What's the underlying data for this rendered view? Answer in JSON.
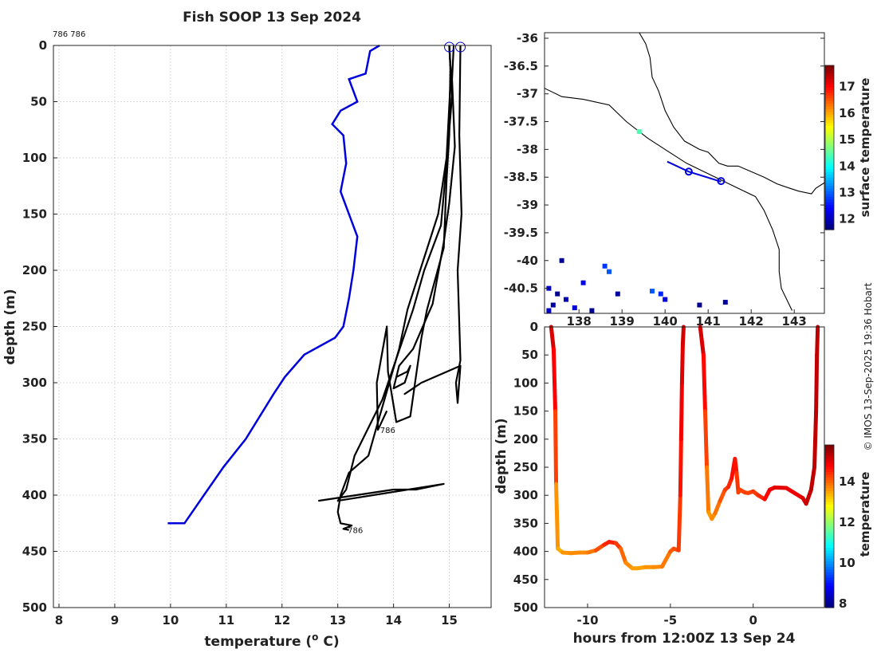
{
  "title": "Fish SOOP 13 Sep 2024",
  "cast_label_top": "786 786",
  "copyright": "© IMOS 13-Sep-2025 19:36 Hobart",
  "chart_data": [
    {
      "type": "line",
      "name": "profiles",
      "xlabel": "temperature (o C)",
      "xlabel_text": "temperature (",
      "xlabel_sup": "o",
      "xlabel_tail": " C)",
      "ylabel": "depth (m)",
      "xlim": [
        7.9,
        15.75
      ],
      "ylim": [
        0,
        500
      ],
      "xticks": [
        8,
        9,
        10,
        11,
        12,
        13,
        14,
        15
      ],
      "yticks": [
        0,
        50,
        100,
        150,
        200,
        250,
        300,
        350,
        400,
        450,
        500
      ],
      "grid": true,
      "climatology": {
        "color": "#0000dd",
        "x": [
          13.75,
          13.58,
          13.5,
          13.2,
          13.35,
          13.05,
          12.9,
          13.1,
          13.15,
          13.05,
          13.2,
          13.35,
          13.28,
          13.2,
          13.1,
          12.95,
          12.4,
          12.05,
          11.85,
          11.35,
          10.95,
          10.6,
          10.25,
          9.95
        ],
        "y": [
          0,
          5,
          25,
          30,
          50,
          58,
          70,
          80,
          105,
          130,
          150,
          170,
          200,
          225,
          250,
          260,
          275,
          295,
          310,
          350,
          375,
          400,
          425,
          425
        ]
      },
      "casts": [
        {
          "id": "786",
          "label_at": [
            13.73,
            342
          ],
          "color": "#000",
          "x": [
            15.0,
            15.02,
            15.0,
            14.95,
            14.9,
            14.6,
            14.5,
            14.3,
            14.05,
            13.9,
            13.88,
            13.7,
            13.72,
            13.88
          ],
          "y": [
            0,
            20,
            80,
            120,
            180,
            235,
            260,
            330,
            335,
            290,
            250,
            300,
            342,
            325
          ]
        },
        {
          "id": "786b",
          "label_at": null,
          "color": "#000",
          "x": [
            15.08,
            15.05,
            15.1,
            15.0,
            14.9,
            14.7,
            14.35,
            14.1,
            14.0,
            14.2,
            14.3,
            14.25,
            14.05
          ],
          "y": [
            0,
            30,
            90,
            140,
            175,
            230,
            270,
            285,
            305,
            300,
            285,
            290,
            295
          ]
        },
        {
          "id": "786",
          "label_at": [
            13.15,
            431
          ],
          "color": "#000",
          "x": [
            15.0,
            15.03,
            14.95,
            14.8,
            14.25,
            14.1,
            13.75,
            13.55,
            13.2,
            13.05,
            13.0,
            13.05,
            13.25,
            13.1,
            13.2
          ],
          "y": [
            0,
            25,
            100,
            150,
            235,
            270,
            330,
            365,
            380,
            400,
            415,
            425,
            427,
            430,
            431
          ]
        },
        {
          "id": "786c",
          "label_at": null,
          "color": "#000",
          "x": [
            15.0,
            15.05,
            14.95,
            14.85,
            14.55,
            14.35,
            13.8,
            13.3,
            13.15,
            13.0,
            14.9,
            14.4,
            14.0,
            12.65
          ],
          "y": [
            0,
            45,
            105,
            160,
            200,
            235,
            315,
            365,
            395,
            405,
            390,
            395,
            395,
            405
          ]
        },
        {
          "id": "786d",
          "label_at": null,
          "color": "#000",
          "x": [
            15.2,
            15.18,
            15.22,
            15.15,
            15.2,
            15.12,
            15.15,
            15.2,
            14.5,
            14.2,
            14.35
          ],
          "y": [
            0,
            80,
            150,
            200,
            280,
            300,
            318,
            285,
            300,
            310,
            305
          ]
        }
      ],
      "cast_markers_x": [
        15.0,
        15.2
      ]
    },
    {
      "type": "scatter",
      "name": "map",
      "colorbar_label": "surface temperature",
      "xlim": [
        137.2,
        143.7
      ],
      "ylim": [
        -40.95,
        -35.9
      ],
      "xticks": [
        138,
        139,
        140,
        141,
        142,
        143
      ],
      "yticks": [
        -36,
        -36.5,
        -37,
        -37.5,
        -38,
        -38.5,
        -39,
        -39.5,
        -40,
        -40.5
      ],
      "ytick_labels": [
        "-36",
        "-36.5",
        "-37",
        "-37.5",
        "-38",
        "-38.5",
        "-39",
        "-39.5",
        "-40",
        "-40.5"
      ],
      "xtick_labels": [
        "138",
        "139",
        "140",
        "141",
        "142",
        "143"
      ],
      "colorbar_ticks": [
        12,
        13,
        14,
        15,
        16,
        17
      ],
      "colorbar_range": [
        11.6,
        17.8
      ],
      "track": {
        "color": "#0000dd",
        "lon": [
          140.05,
          140.55,
          141.3
        ],
        "lat": [
          -38.22,
          -38.4,
          -38.58
        ]
      },
      "stations": [
        {
          "lon": 140.55,
          "lat": -38.4
        },
        {
          "lon": 141.3,
          "lat": -38.57
        }
      ],
      "coast_outer": [
        [
          137.2,
          -36.9
        ],
        [
          137.6,
          -37.05
        ],
        [
          138.1,
          -37.1
        ],
        [
          138.7,
          -37.2
        ],
        [
          139.1,
          -37.5
        ],
        [
          139.6,
          -37.8
        ],
        [
          140.1,
          -38.05
        ],
        [
          140.5,
          -38.25
        ],
        [
          140.9,
          -38.4
        ],
        [
          141.3,
          -38.55
        ],
        [
          141.7,
          -38.7
        ],
        [
          142.1,
          -38.85
        ],
        [
          142.3,
          -39.1
        ],
        [
          142.5,
          -39.45
        ],
        [
          142.65,
          -39.8
        ],
        [
          142.65,
          -40.2
        ],
        [
          142.7,
          -40.5
        ],
        [
          142.95,
          -40.9
        ]
      ],
      "coast_land": [
        [
          139.4,
          -35.9
        ],
        [
          139.55,
          -36.1
        ],
        [
          139.65,
          -36.35
        ],
        [
          139.7,
          -36.7
        ],
        [
          139.85,
          -36.95
        ],
        [
          140.0,
          -37.3
        ],
        [
          140.2,
          -37.6
        ],
        [
          140.45,
          -37.85
        ],
        [
          140.8,
          -38.0
        ],
        [
          141.0,
          -38.05
        ],
        [
          141.25,
          -38.25
        ],
        [
          141.45,
          -38.3
        ],
        [
          141.7,
          -38.3
        ],
        [
          142.0,
          -38.4
        ],
        [
          142.3,
          -38.5
        ],
        [
          142.6,
          -38.62
        ],
        [
          142.9,
          -38.7
        ],
        [
          143.1,
          -38.75
        ],
        [
          143.4,
          -38.8
        ],
        [
          143.5,
          -38.7
        ],
        [
          143.7,
          -38.6
        ]
      ],
      "sst_cells": [
        {
          "lon": 139.4,
          "lat": -37.68,
          "v": 14.4
        },
        {
          "lon": 137.3,
          "lat": -40.5,
          "v": 12.0
        },
        {
          "lon": 137.5,
          "lat": -40.6,
          "v": 11.7
        },
        {
          "lon": 137.7,
          "lat": -40.7,
          "v": 11.9
        },
        {
          "lon": 137.4,
          "lat": -40.8,
          "v": 11.8
        },
        {
          "lon": 137.9,
          "lat": -40.85,
          "v": 12.1
        },
        {
          "lon": 138.1,
          "lat": -40.4,
          "v": 12.3
        },
        {
          "lon": 138.6,
          "lat": -40.1,
          "v": 12.7
        },
        {
          "lon": 138.7,
          "lat": -40.2,
          "v": 12.9
        },
        {
          "lon": 139.9,
          "lat": -40.6,
          "v": 12.6
        },
        {
          "lon": 140.0,
          "lat": -40.7,
          "v": 12.2
        },
        {
          "lon": 139.7,
          "lat": -40.55,
          "v": 12.9
        },
        {
          "lon": 138.3,
          "lat": -40.9,
          "v": 11.7
        },
        {
          "lon": 140.8,
          "lat": -40.8,
          "v": 11.7
        },
        {
          "lon": 141.4,
          "lat": -40.75,
          "v": 11.8
        },
        {
          "lon": 137.6,
          "lat": -40.0,
          "v": 11.7
        },
        {
          "lon": 138.9,
          "lat": -40.6,
          "v": 11.8
        },
        {
          "lon": 137.3,
          "lat": -40.9,
          "v": 12.0
        }
      ]
    },
    {
      "type": "scatter",
      "name": "depth-time",
      "xlabel": "hours from 12:00Z 13 Sep 24",
      "ylabel": "depth (m)",
      "colorbar_label": "temperature",
      "xlim": [
        -12.6,
        4.3
      ],
      "ylim": [
        0,
        500
      ],
      "xticks": [
        -10,
        -5,
        0
      ],
      "yticks": [
        0,
        50,
        100,
        150,
        200,
        250,
        300,
        350,
        400,
        450,
        500
      ],
      "colorbar_ticks": [
        8,
        10,
        12,
        14
      ],
      "colorbar_range": [
        7.8,
        15.8
      ],
      "segments": [
        {
          "t": [
            -12.2,
            -12.05,
            -11.95,
            -11.9,
            -11.8,
            -11.5,
            -11.0,
            -10.5,
            -10.0,
            -9.5,
            -9.0,
            -8.7,
            -8.3,
            -8.0,
            -7.7,
            -7.3,
            -7.0,
            -6.5,
            -6.0,
            -5.5,
            -5.0,
            -4.8,
            -4.5,
            -4.4,
            -4.35,
            -4.3,
            -4.25,
            -4.2
          ],
          "d": [
            0,
            40,
            150,
            280,
            395,
            402,
            403,
            402,
            402,
            398,
            388,
            383,
            385,
            395,
            420,
            430,
            430,
            428,
            428,
            427,
            400,
            395,
            398,
            300,
            200,
            100,
            30,
            0
          ],
          "temp": [
            15.2,
            15.0,
            14.6,
            14.0,
            13.3,
            13.6,
            13.7,
            13.7,
            13.7,
            14.0,
            14.4,
            14.6,
            14.5,
            14.2,
            13.8,
            13.6,
            13.5,
            13.6,
            13.7,
            13.7,
            14.0,
            14.2,
            14.2,
            14.5,
            14.8,
            15.0,
            15.1,
            15.2
          ]
        },
        {
          "t": [
            -3.2,
            -3.0,
            -2.9,
            -2.8,
            -2.7,
            -2.5,
            -2.3,
            -2.0,
            -1.7,
            -1.5,
            -1.3,
            -1.1,
            -1.0,
            -0.9,
            -0.8,
            -0.5,
            -0.3,
            0.0,
            0.3,
            0.7,
            1.0,
            1.3,
            2.0,
            2.5,
            3.0,
            3.2,
            3.5,
            3.7,
            3.8,
            3.85,
            3.9
          ],
          "d": [
            0,
            50,
            150,
            250,
            330,
            342,
            332,
            310,
            290,
            285,
            270,
            235,
            260,
            295,
            290,
            295,
            296,
            293,
            300,
            307,
            290,
            286,
            287,
            296,
            305,
            315,
            290,
            250,
            150,
            50,
            0
          ],
          "temp": [
            15.2,
            15.0,
            14.5,
            14.1,
            13.6,
            13.6,
            13.8,
            14.0,
            14.3,
            14.4,
            14.6,
            14.8,
            14.5,
            14.3,
            14.3,
            14.3,
            14.3,
            14.3,
            14.4,
            14.6,
            14.9,
            15.0,
            15.0,
            14.9,
            15.0,
            15.2,
            15.3,
            15.3,
            15.3,
            15.3,
            15.3
          ]
        }
      ]
    }
  ]
}
